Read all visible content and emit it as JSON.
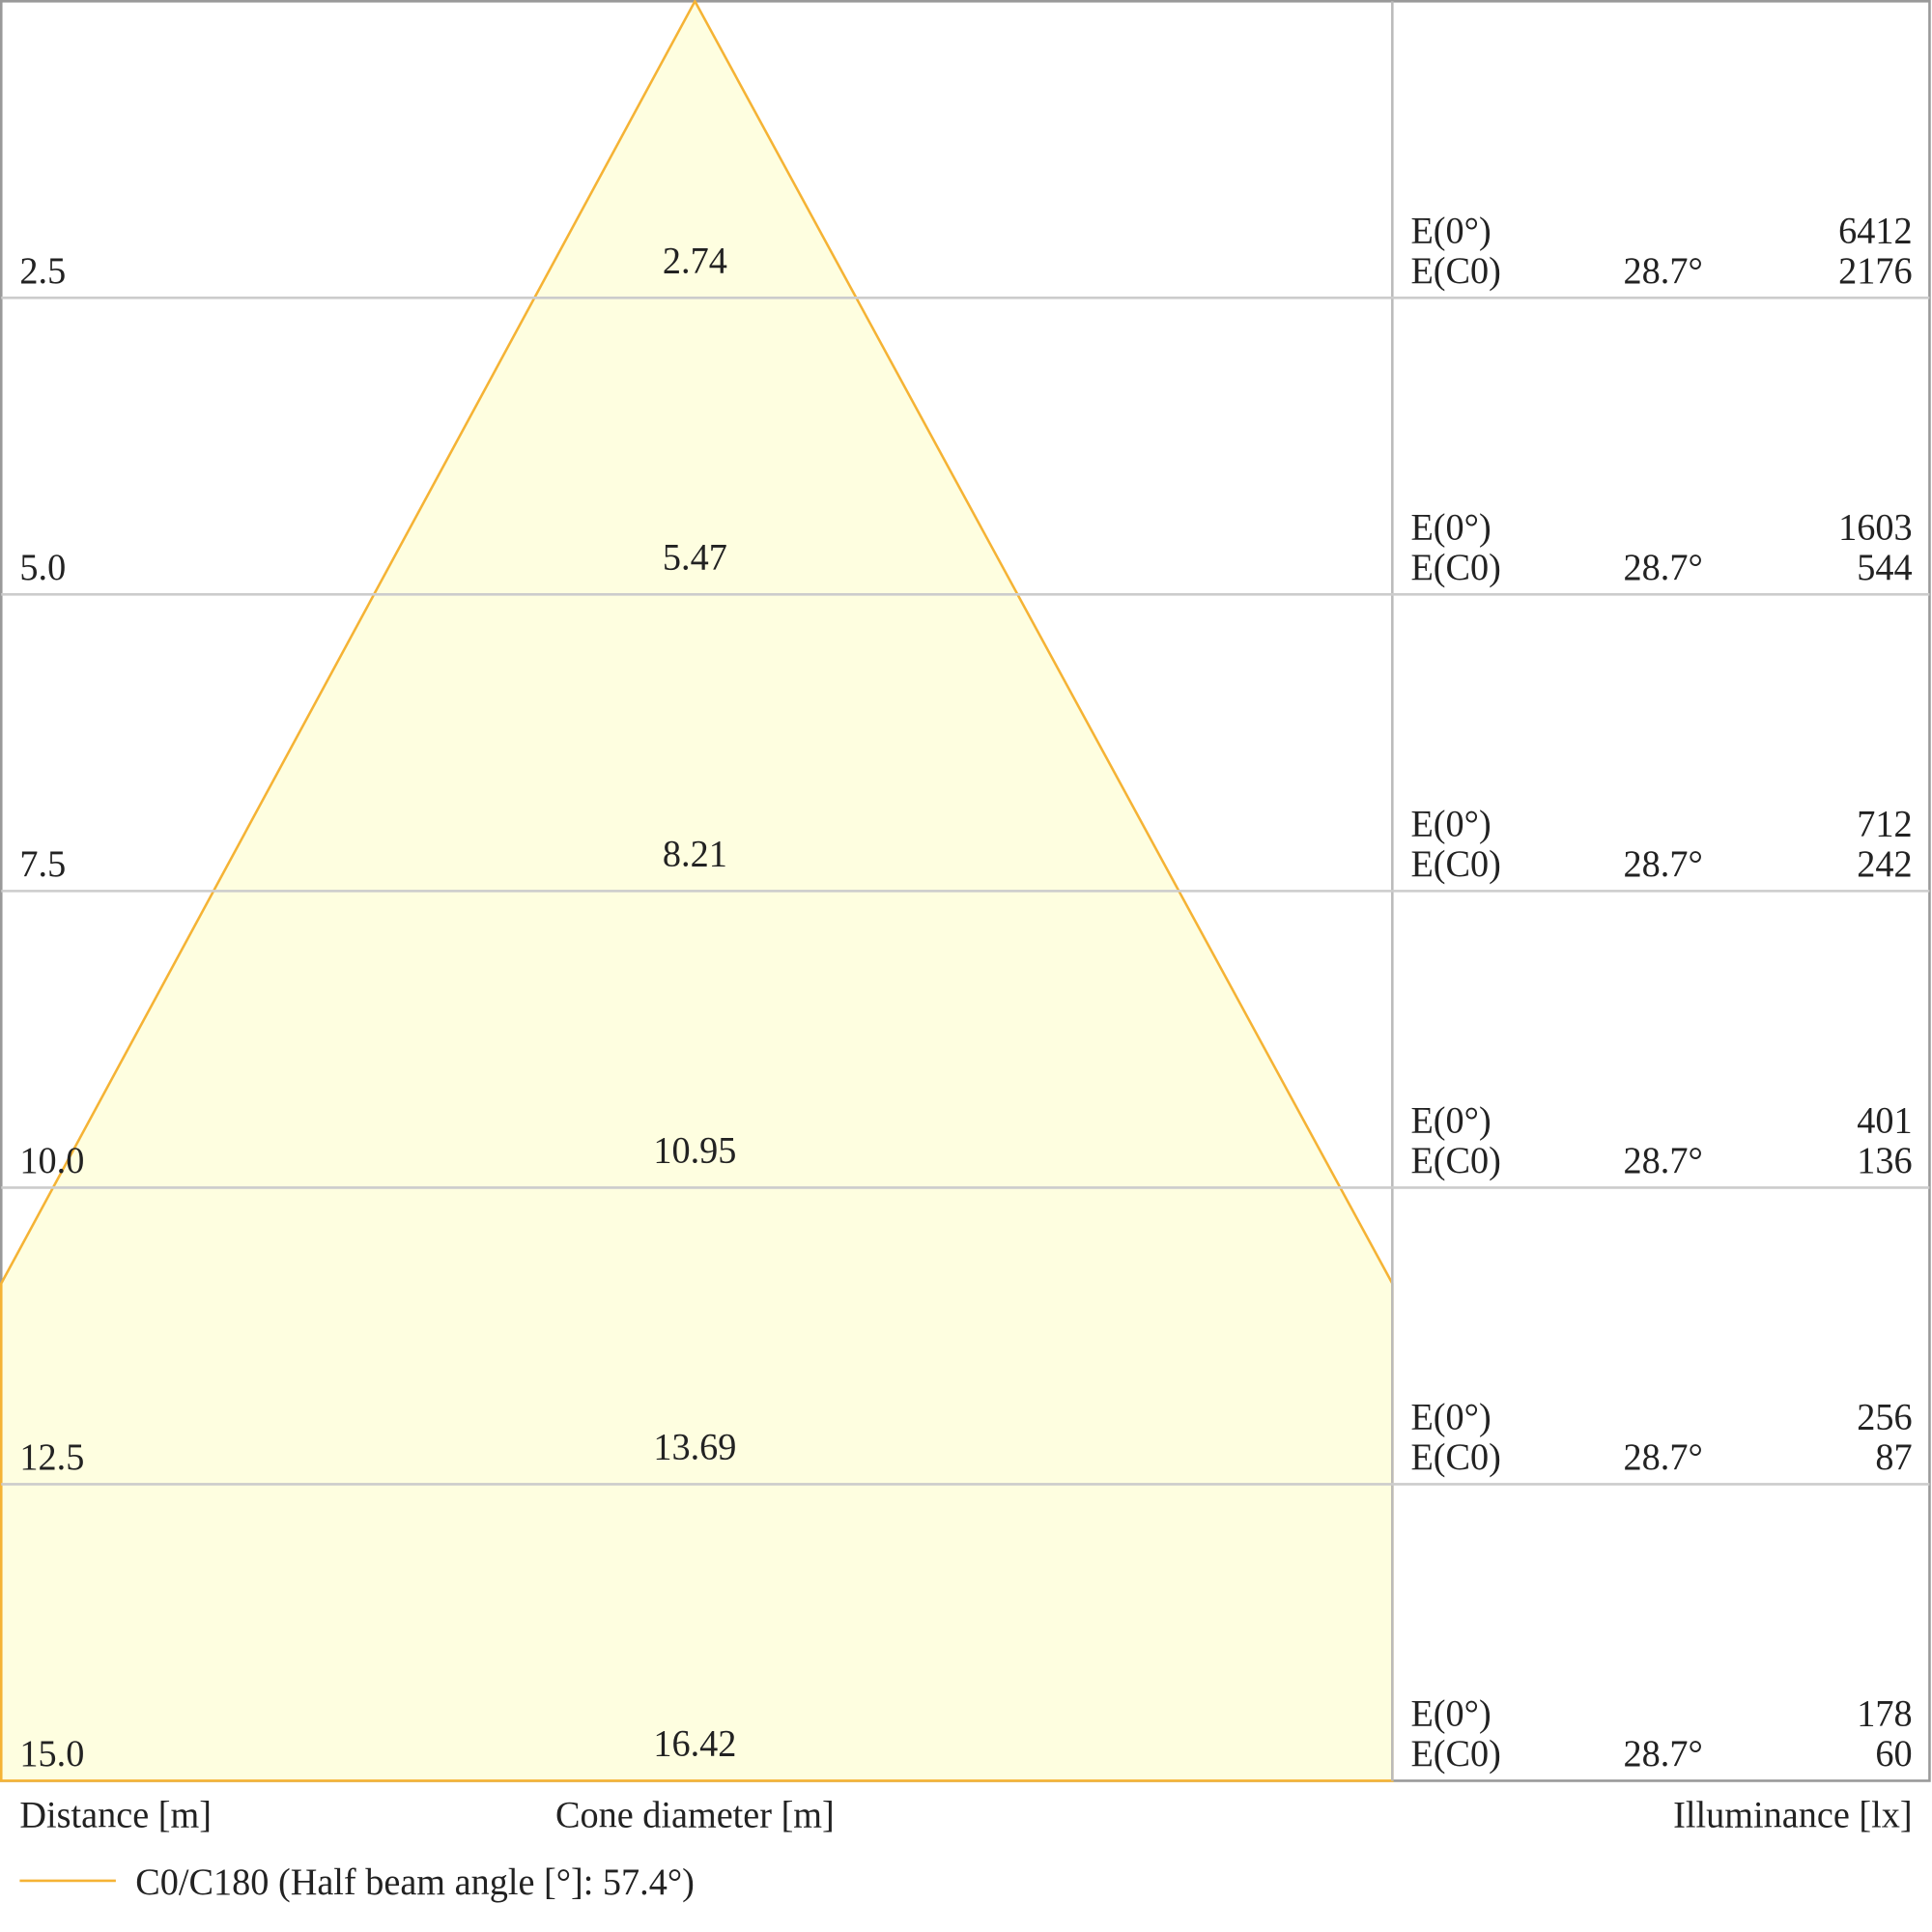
{
  "rows": [
    {
      "distance": "2.5",
      "diameter": "2.74",
      "e0_label": "E(0°)",
      "e0": "6412",
      "ec0_label": "E(C0)",
      "angle": "28.7°",
      "ec0": "2176"
    },
    {
      "distance": "5.0",
      "diameter": "5.47",
      "e0_label": "E(0°)",
      "e0": "1603",
      "ec0_label": "E(C0)",
      "angle": "28.7°",
      "ec0": "544"
    },
    {
      "distance": "7.5",
      "diameter": "8.21",
      "e0_label": "E(0°)",
      "e0": "712",
      "ec0_label": "E(C0)",
      "angle": "28.7°",
      "ec0": "242"
    },
    {
      "distance": "10.0",
      "diameter": "10.95",
      "e0_label": "E(0°)",
      "e0": "401",
      "ec0_label": "E(C0)",
      "angle": "28.7°",
      "ec0": "136"
    },
    {
      "distance": "12.5",
      "diameter": "13.69",
      "e0_label": "E(0°)",
      "e0": "256",
      "ec0_label": "E(C0)",
      "angle": "28.7°",
      "ec0": "87"
    },
    {
      "distance": "15.0",
      "diameter": "16.42",
      "e0_label": "E(0°)",
      "e0": "178",
      "ec0_label": "E(C0)",
      "angle": "28.7°",
      "ec0": "60"
    }
  ],
  "axis_labels": {
    "distance": "Distance [m]",
    "cone": "Cone diameter [m]",
    "illuminance": "Illuminance [lx]"
  },
  "legend": "C0/C180 (Half beam angle [°]: 57.4°)"
}
